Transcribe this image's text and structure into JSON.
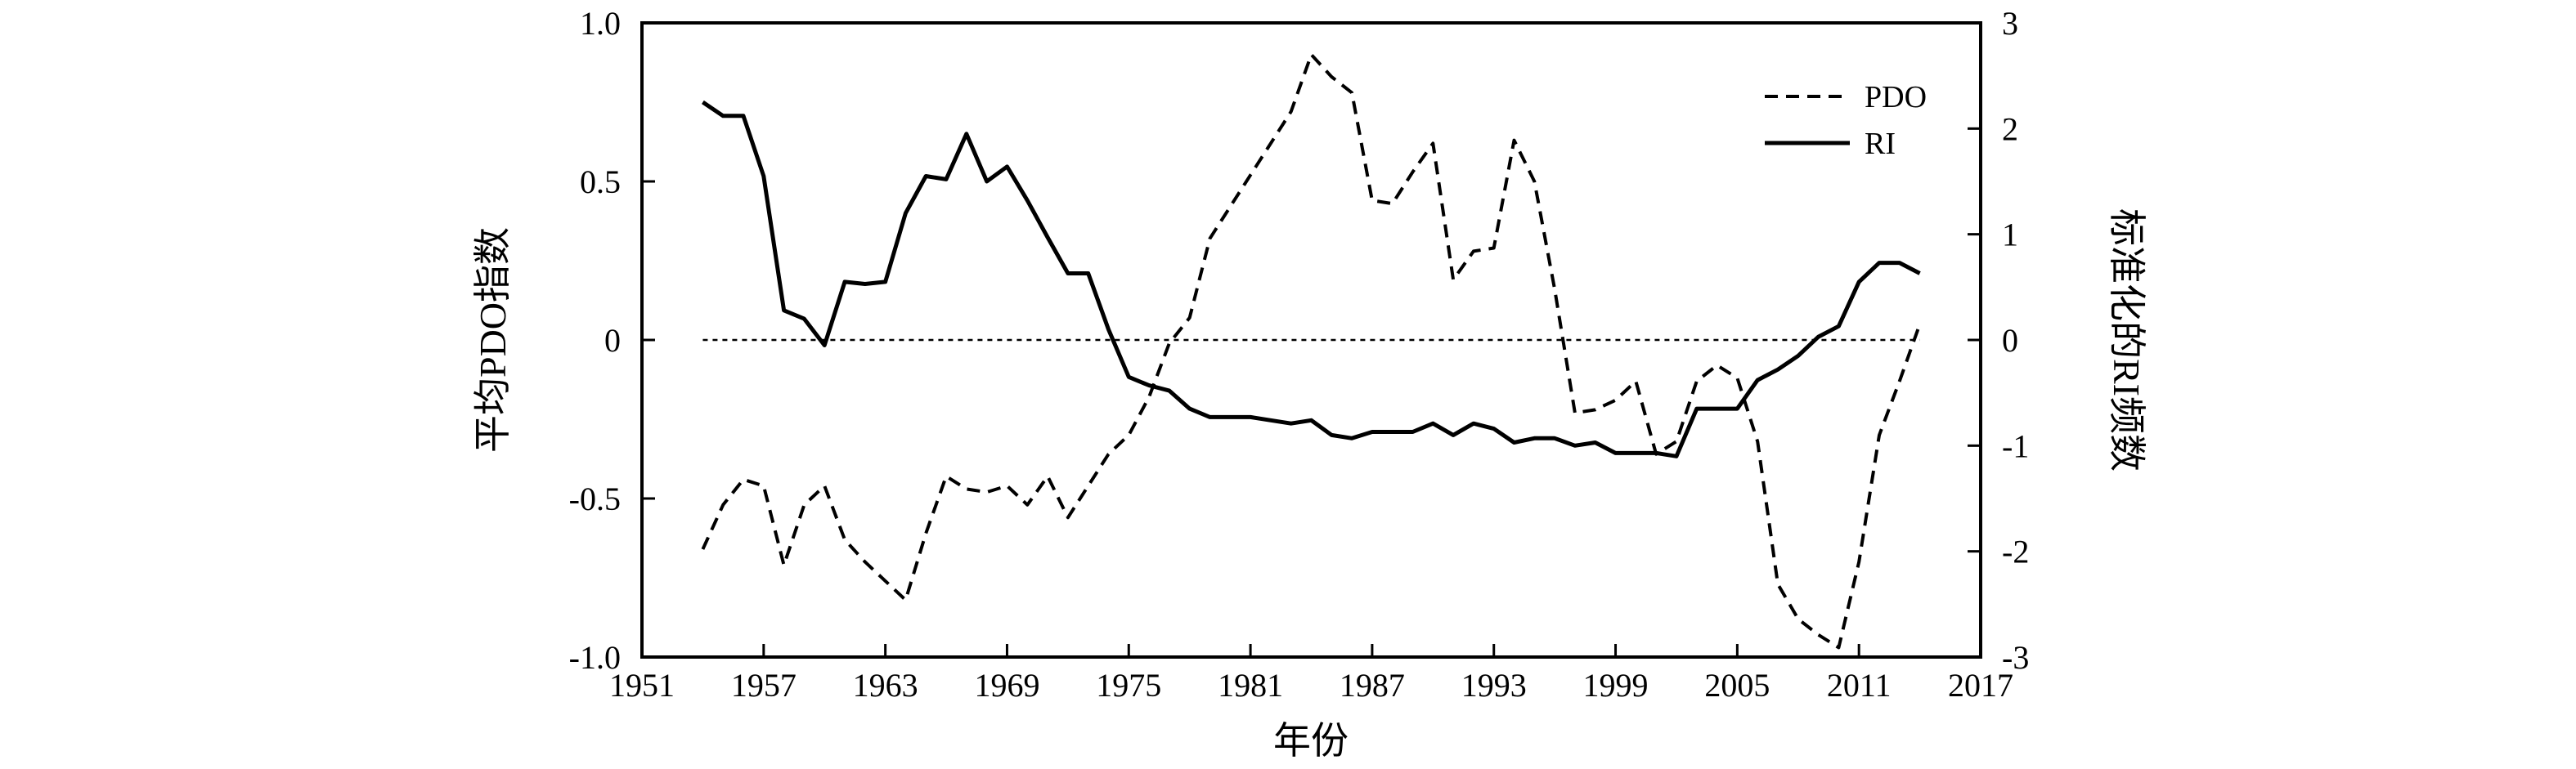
{
  "chart_data": {
    "type": "line",
    "xlabel": "年份",
    "ylabel_left": "平均PDO指数",
    "ylabel_right": "标准化的RI频数",
    "xlim": [
      1951,
      2017
    ],
    "ylim_left": [
      -1.0,
      1.0
    ],
    "ylim_right": [
      -3,
      3
    ],
    "xticks": [
      1951,
      1957,
      1963,
      1969,
      1975,
      1981,
      1987,
      1993,
      1999,
      2005,
      2011,
      2017
    ],
    "yticks_left": [
      "1.0",
      "0.5",
      "0",
      "-0.5",
      "-1.0"
    ],
    "yticks_right": [
      "3",
      "2",
      "1",
      "0",
      "-1",
      "-2",
      "-3"
    ],
    "legend_position": "top-right",
    "grid": false,
    "zero_line": {
      "axis": "left",
      "value": 0,
      "x_range": [
        1954,
        2014
      ],
      "style": "dotted"
    },
    "series": [
      {
        "name": "PDO",
        "axis": "left",
        "style": "dashed",
        "color": "#000000",
        "x": [
          1954,
          1955,
          1956,
          1957,
          1958,
          1959,
          1960,
          1961,
          1962,
          1963,
          1964,
          1965,
          1966,
          1967,
          1968,
          1969,
          1970,
          1971,
          1972,
          1973,
          1974,
          1975,
          1976,
          1977,
          1978,
          1979,
          1980,
          1981,
          1982,
          1983,
          1984,
          1985,
          1986,
          1987,
          1988,
          1989,
          1990,
          1991,
          1992,
          1993,
          1994,
          1995,
          1996,
          1997,
          1998,
          1999,
          2000,
          2001,
          2002,
          2003,
          2004,
          2005,
          2006,
          2007,
          2008,
          2009,
          2010,
          2011,
          2012,
          2013,
          2014
        ],
        "y": [
          -0.66,
          -0.52,
          -0.44,
          -0.46,
          -0.71,
          -0.52,
          -0.46,
          -0.63,
          -0.7,
          -0.76,
          -0.82,
          -0.61,
          -0.43,
          -0.47,
          -0.48,
          -0.46,
          -0.52,
          -0.43,
          -0.56,
          -0.46,
          -0.36,
          -0.3,
          -0.18,
          -0.01,
          0.07,
          0.32,
          0.42,
          0.52,
          0.62,
          0.72,
          0.9,
          0.83,
          0.78,
          0.44,
          0.43,
          0.53,
          0.62,
          0.19,
          0.28,
          0.29,
          0.63,
          0.5,
          0.16,
          -0.23,
          -0.22,
          -0.19,
          -0.13,
          -0.36,
          -0.32,
          -0.13,
          -0.08,
          -0.12,
          -0.32,
          -0.77,
          -0.88,
          -0.93,
          -0.97,
          -0.7,
          -0.3,
          -0.13,
          0.05
        ]
      },
      {
        "name": "RI",
        "axis": "right",
        "style": "solid",
        "color": "#000000",
        "x": [
          1954,
          1955,
          1956,
          1957,
          1958,
          1959,
          1960,
          1961,
          1962,
          1963,
          1964,
          1965,
          1966,
          1967,
          1968,
          1969,
          1970,
          1971,
          1972,
          1973,
          1974,
          1975,
          1976,
          1977,
          1978,
          1979,
          1980,
          1981,
          1982,
          1983,
          1984,
          1985,
          1986,
          1987,
          1988,
          1989,
          1990,
          1991,
          1992,
          1993,
          1994,
          1995,
          1996,
          1997,
          1998,
          1999,
          2000,
          2001,
          2002,
          2003,
          2004,
          2005,
          2006,
          2007,
          2008,
          2009,
          2010,
          2011,
          2012,
          2013,
          2014
        ],
        "y": [
          2.25,
          2.12,
          2.12,
          1.55,
          0.28,
          0.2,
          -0.05,
          0.55,
          0.53,
          0.55,
          1.2,
          1.55,
          1.52,
          1.95,
          1.5,
          1.64,
          1.32,
          0.97,
          0.63,
          0.63,
          0.1,
          -0.35,
          -0.43,
          -0.48,
          -0.65,
          -0.73,
          -0.73,
          -0.73,
          -0.76,
          -0.79,
          -0.76,
          -0.9,
          -0.93,
          -0.87,
          -0.87,
          -0.87,
          -0.79,
          -0.9,
          -0.79,
          -0.84,
          -0.97,
          -0.93,
          -0.93,
          -1.0,
          -0.97,
          -1.07,
          -1.07,
          -1.07,
          -1.1,
          -0.65,
          -0.65,
          -0.65,
          -0.38,
          -0.28,
          -0.15,
          0.03,
          0.13,
          0.55,
          0.73,
          0.73,
          0.63
        ]
      }
    ]
  }
}
